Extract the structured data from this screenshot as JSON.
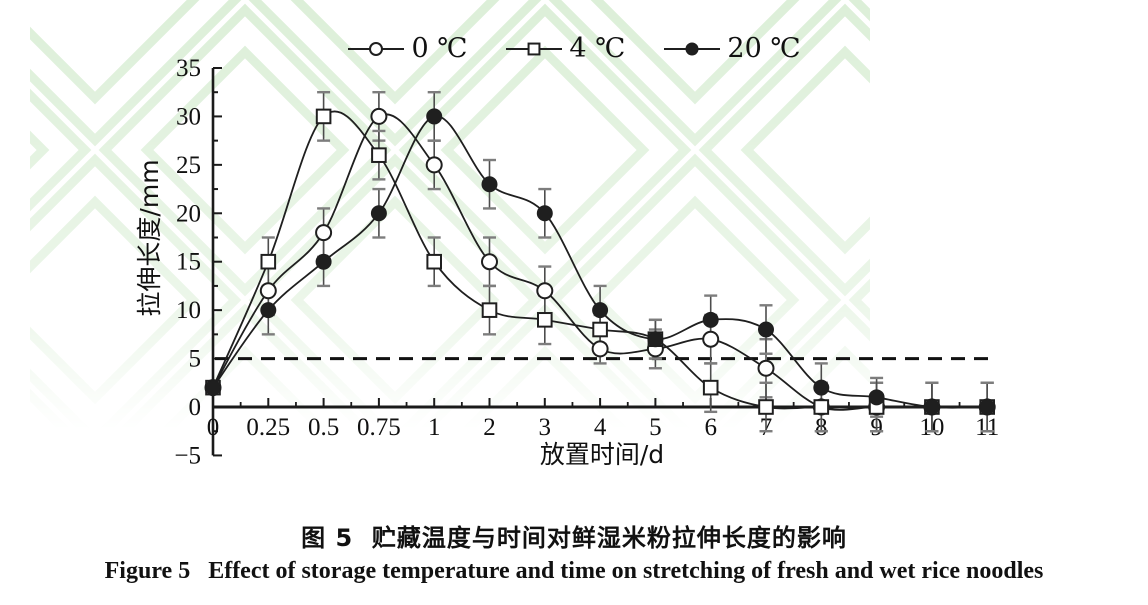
{
  "figure": {
    "caption_zh": "图 5  贮藏温度与时间对鲜湿米粉拉伸长度的影响",
    "caption_en": "Figure 5   Effect of storage temperature and time on stretching of fresh and wet rice noodles"
  },
  "chart_data": {
    "type": "line",
    "title": "",
    "xlabel": "放置时间/d",
    "ylabel": "拉伸长度/mm",
    "categories": [
      "0",
      "0.25",
      "0.5",
      "0.75",
      "1",
      "2",
      "3",
      "4",
      "5",
      "6",
      "7",
      "8",
      "9",
      "10",
      "11"
    ],
    "ylim": [
      -5,
      35
    ],
    "ytick_major": 5,
    "ytick_minor": 2.5,
    "grid": false,
    "legend_position": "top-center",
    "reference_line": {
      "y": 5,
      "style": "dashed"
    },
    "series": [
      {
        "name": "0 ℃",
        "marker": "circle-open",
        "values": [
          2,
          12,
          18,
          30,
          25,
          15,
          12,
          6,
          6,
          7,
          4,
          0,
          0,
          0,
          0
        ],
        "errors": [
          0.5,
          2.5,
          2.5,
          2.5,
          2.5,
          2.5,
          2.5,
          1.5,
          2,
          2.5,
          3,
          2.5,
          2.5,
          2.5,
          2.5
        ]
      },
      {
        "name": "4 ℃",
        "marker": "square-open",
        "values": [
          2,
          15,
          30,
          26,
          15,
          10,
          9,
          8,
          7,
          2,
          0,
          0,
          0,
          0,
          0
        ],
        "errors": [
          0.5,
          2.5,
          2.5,
          2.5,
          2.5,
          2.5,
          2.5,
          1.5,
          2,
          2.5,
          2.5,
          2.5,
          2.5,
          2.5,
          2.5
        ]
      },
      {
        "name": "20 ℃",
        "marker": "circle-filled",
        "values": [
          2,
          10,
          15,
          20,
          30,
          23,
          20,
          10,
          7,
          9,
          8,
          2,
          1,
          0,
          0
        ],
        "errors": [
          0.5,
          2.5,
          2.5,
          2.5,
          2.5,
          2.5,
          2.5,
          2.5,
          2,
          2.5,
          2.5,
          2.5,
          2,
          2.5,
          2.5
        ]
      }
    ]
  },
  "colors": {
    "line": "#1f1f1f",
    "axis": "#1a1a1a",
    "text": "#111111",
    "error_bar": "#4d4d4d",
    "error_cap": "#7d7d7d",
    "reference_line": "#111111",
    "watermark": "#dcefd8"
  }
}
